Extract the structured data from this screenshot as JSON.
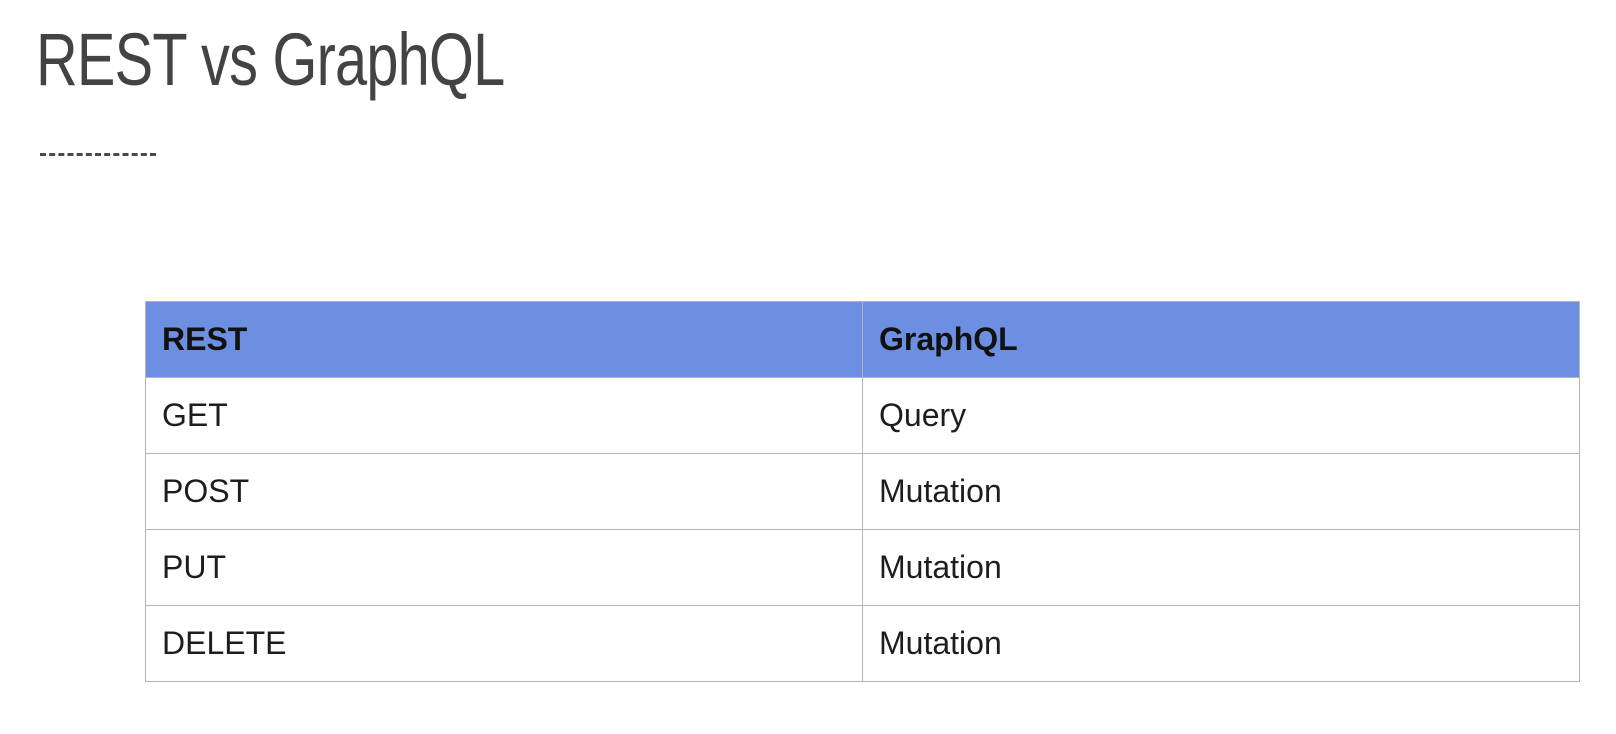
{
  "slide": {
    "title": "REST vs GraphQL"
  },
  "colors": {
    "header_background": "#6d8fe1",
    "title_text": "#434343",
    "grid_lines": "#b4b4b4"
  },
  "table": {
    "headers": [
      "REST",
      "GraphQL"
    ],
    "rows": [
      [
        "GET",
        "Query"
      ],
      [
        "POST",
        "Mutation"
      ],
      [
        "PUT",
        "Mutation"
      ],
      [
        "DELETE",
        "Mutation"
      ]
    ]
  }
}
